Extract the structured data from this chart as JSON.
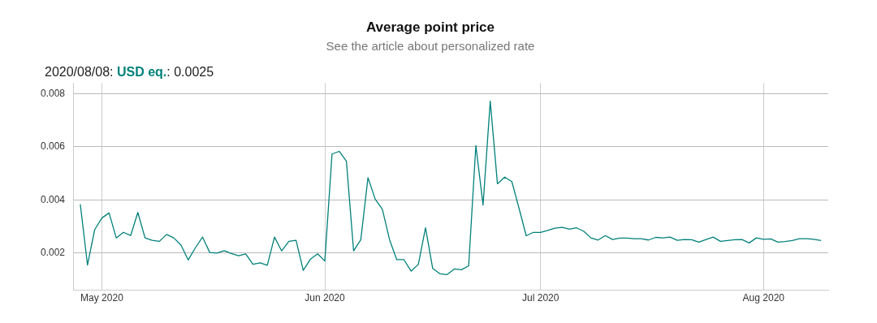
{
  "chart_data": {
    "type": "line",
    "title": "Average point price",
    "subtitle": "See the article about personalized rate",
    "x": [
      "2020-04-28",
      "2020-04-29",
      "2020-04-30",
      "2020-05-01",
      "2020-05-02",
      "2020-05-03",
      "2020-05-04",
      "2020-05-05",
      "2020-05-06",
      "2020-05-07",
      "2020-05-08",
      "2020-05-09",
      "2020-05-10",
      "2020-05-11",
      "2020-05-12",
      "2020-05-13",
      "2020-05-14",
      "2020-05-15",
      "2020-05-16",
      "2020-05-17",
      "2020-05-18",
      "2020-05-19",
      "2020-05-20",
      "2020-05-21",
      "2020-05-22",
      "2020-05-23",
      "2020-05-24",
      "2020-05-25",
      "2020-05-26",
      "2020-05-27",
      "2020-05-28",
      "2020-05-29",
      "2020-05-30",
      "2020-05-31",
      "2020-06-01",
      "2020-06-02",
      "2020-06-03",
      "2020-06-04",
      "2020-06-05",
      "2020-06-06",
      "2020-06-07",
      "2020-06-08",
      "2020-06-09",
      "2020-06-10",
      "2020-06-11",
      "2020-06-12",
      "2020-06-13",
      "2020-06-14",
      "2020-06-15",
      "2020-06-16",
      "2020-06-17",
      "2020-06-18",
      "2020-06-19",
      "2020-06-20",
      "2020-06-21",
      "2020-06-22",
      "2020-06-23",
      "2020-06-24",
      "2020-06-25",
      "2020-06-26",
      "2020-06-27",
      "2020-06-28",
      "2020-06-29",
      "2020-06-30",
      "2020-07-01",
      "2020-07-02",
      "2020-07-03",
      "2020-07-04",
      "2020-07-05",
      "2020-07-06",
      "2020-07-07",
      "2020-07-08",
      "2020-07-09",
      "2020-07-10",
      "2020-07-11",
      "2020-07-12",
      "2020-07-13",
      "2020-07-14",
      "2020-07-15",
      "2020-07-16",
      "2020-07-17",
      "2020-07-18",
      "2020-07-19",
      "2020-07-20",
      "2020-07-21",
      "2020-07-22",
      "2020-07-23",
      "2020-07-24",
      "2020-07-25",
      "2020-07-26",
      "2020-07-27",
      "2020-07-28",
      "2020-07-29",
      "2020-07-30",
      "2020-07-31",
      "2020-08-01",
      "2020-08-02",
      "2020-08-03",
      "2020-08-04",
      "2020-08-05",
      "2020-08-06",
      "2020-08-07",
      "2020-08-08",
      "2020-08-09"
    ],
    "series": [
      {
        "color": "#00807a",
        "values": [
          0.00384,
          0.00155,
          0.00288,
          0.00332,
          0.00351,
          0.00257,
          0.00278,
          0.00266,
          0.00353,
          0.00257,
          0.00248,
          0.00244,
          0.0027,
          0.00257,
          0.0023,
          0.00174,
          0.0022,
          0.0026,
          0.00202,
          0.002,
          0.00209,
          0.00198,
          0.0019,
          0.00197,
          0.00158,
          0.00163,
          0.00154,
          0.0026,
          0.00208,
          0.00244,
          0.00248,
          0.00135,
          0.00177,
          0.00197,
          0.0017,
          0.00573,
          0.00583,
          0.00546,
          0.00208,
          0.0025,
          0.00484,
          0.00403,
          0.00365,
          0.0025,
          0.00175,
          0.00175,
          0.00132,
          0.00157,
          0.00295,
          0.00142,
          0.00122,
          0.00119,
          0.0014,
          0.00137,
          0.00152,
          0.00605,
          0.00381,
          0.00772,
          0.00461,
          0.00486,
          0.00469,
          0.00369,
          0.00265,
          0.00278,
          0.00278,
          0.00285,
          0.00294,
          0.00297,
          0.0029,
          0.00295,
          0.00282,
          0.00257,
          0.00249,
          0.00266,
          0.00251,
          0.00256,
          0.00256,
          0.00254,
          0.00254,
          0.00249,
          0.00259,
          0.00257,
          0.0026,
          0.00248,
          0.00251,
          0.0025,
          0.00241,
          0.00251,
          0.0026,
          0.00244,
          0.00247,
          0.0025,
          0.00251,
          0.00238,
          0.00257,
          0.00252,
          0.00253,
          0.00241,
          0.00243,
          0.00247,
          0.00254,
          0.00254,
          0.00252,
          0.00247
        ]
      }
    ],
    "xlim": [
      "2020-04-27",
      "2020-08-10"
    ],
    "xticks": [
      {
        "value": "2020-05-01",
        "label": "May 2020"
      },
      {
        "value": "2020-06-01",
        "label": "Jun 2020"
      },
      {
        "value": "2020-07-01",
        "label": "Jul 2020"
      },
      {
        "value": "2020-08-01",
        "label": "Aug 2020"
      }
    ],
    "ylim": [
      0.0006,
      0.0084
    ],
    "yticks": [
      0.002,
      0.004,
      0.006,
      0.008
    ],
    "grid": true,
    "legend": false,
    "marker": "none",
    "line_style": "solid",
    "annotations": [
      "2020/08/08: USD eq.: 0.0025"
    ]
  }
}
